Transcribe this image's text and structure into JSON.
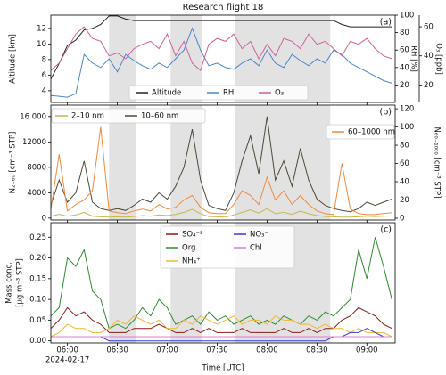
{
  "title": "Research flight 18",
  "chart_data": [
    {
      "type": "line",
      "panel_label": "(a)",
      "ylabel": "Altitude [km]",
      "y2label": "RH [%]",
      "y3label": "O₃ [ppb]",
      "x": [
        "05:50",
        "05:55",
        "06:00",
        "06:05",
        "06:10",
        "06:15",
        "06:20",
        "06:25",
        "06:30",
        "06:35",
        "06:40",
        "06:45",
        "06:50",
        "06:55",
        "07:00",
        "07:05",
        "07:10",
        "07:15",
        "07:20",
        "07:25",
        "07:30",
        "07:35",
        "07:40",
        "07:45",
        "07:50",
        "07:55",
        "08:00",
        "08:05",
        "08:10",
        "08:15",
        "08:20",
        "08:25",
        "08:30",
        "08:35",
        "08:40",
        "08:45",
        "08:50",
        "08:55",
        "09:00",
        "09:05",
        "09:10",
        "09:15"
      ],
      "xlim": [
        "05:50",
        "09:17"
      ],
      "shaded": [
        [
          "06:25",
          "06:41"
        ],
        [
          "07:02",
          "07:21"
        ],
        [
          "07:41",
          "08:38"
        ]
      ],
      "ylim": [
        2.5,
        13.7
      ],
      "yticks": [
        4,
        6,
        8,
        10,
        12
      ],
      "y2lim": [
        0,
        100
      ],
      "y2ticks": [
        20,
        40,
        60,
        80,
        100
      ],
      "y3lim": [
        8,
        68
      ],
      "y3ticks": [
        20,
        40,
        60
      ],
      "series": [
        {
          "name": "Altitude",
          "color": "#222222",
          "axis": "y",
          "values": [
            5.5,
            7.5,
            9.8,
            10.5,
            11.8,
            12.0,
            12.5,
            13.6,
            13.6,
            13.2,
            13.0,
            13.0,
            13.0,
            13.0,
            13.0,
            13.0,
            13.0,
            13.0,
            13.0,
            13.0,
            13.0,
            13.0,
            13.0,
            13.0,
            13.0,
            13.0,
            13.0,
            13.0,
            13.0,
            13.0,
            13.0,
            13.0,
            13.0,
            13.0,
            13.0,
            12.5,
            12.2,
            12.2,
            12.2,
            12.2,
            12.2,
            12.2
          ]
        },
        {
          "name": "RH",
          "color": "#4a86c8",
          "axis": "y2",
          "values": [
            8,
            7,
            6,
            10,
            55,
            45,
            40,
            50,
            35,
            55,
            48,
            42,
            38,
            45,
            40,
            50,
            60,
            85,
            60,
            42,
            45,
            40,
            38,
            45,
            50,
            42,
            60,
            45,
            40,
            55,
            48,
            42,
            50,
            45,
            60,
            55,
            45,
            40,
            35,
            30,
            25,
            22
          ]
        },
        {
          "name": "O₃",
          "color": "#d0609a",
          "axis": "y3",
          "values": [
            30,
            35,
            45,
            55,
            60,
            52,
            50,
            40,
            42,
            38,
            45,
            48,
            50,
            45,
            55,
            40,
            50,
            35,
            30,
            48,
            52,
            50,
            55,
            45,
            50,
            38,
            48,
            40,
            52,
            50,
            45,
            55,
            48,
            50,
            45,
            40,
            50,
            48,
            52,
            45,
            40,
            38
          ]
        }
      ]
    },
    {
      "type": "line",
      "panel_label": "(b)",
      "ylabel": "N₂₋₆₀ [cm⁻³ STP]",
      "y2label": "N₆₀₋₁₀₀₀ [cm⁻³ STP]",
      "x": [
        "05:50",
        "05:55",
        "06:00",
        "06:05",
        "06:10",
        "06:15",
        "06:20",
        "06:25",
        "06:30",
        "06:35",
        "06:40",
        "06:45",
        "06:50",
        "06:55",
        "07:00",
        "07:05",
        "07:10",
        "07:15",
        "07:20",
        "07:25",
        "07:30",
        "07:35",
        "07:40",
        "07:45",
        "07:50",
        "07:55",
        "08:00",
        "08:05",
        "08:10",
        "08:15",
        "08:20",
        "08:25",
        "08:30",
        "08:35",
        "08:40",
        "08:45",
        "08:50",
        "08:55",
        "09:00",
        "09:05",
        "09:10",
        "09:15"
      ],
      "xlim": [
        "05:50",
        "09:17"
      ],
      "shaded": [
        [
          "06:25",
          "06:41"
        ],
        [
          "07:02",
          "07:21"
        ],
        [
          "07:41",
          "08:38"
        ]
      ],
      "ylim": [
        -300,
        17800
      ],
      "yticks": [
        0,
        4000,
        8000,
        12000,
        {
          "value": 16000,
          "label": "16 000"
        }
      ],
      "y2lim": [
        -2,
        124
      ],
      "y2ticks": [
        0,
        20,
        40,
        60,
        80,
        100,
        120
      ],
      "series": [
        {
          "name": "2–10 nm",
          "color": "#c8b84a",
          "axis": "y",
          "values": [
            300,
            600,
            300,
            500,
            900,
            300,
            200,
            150,
            200,
            150,
            250,
            400,
            300,
            500,
            400,
            600,
            900,
            1400,
            700,
            250,
            200,
            150,
            500,
            900,
            1300,
            800,
            1500,
            700,
            900,
            600,
            1100,
            700,
            400,
            250,
            200,
            150,
            150,
            200,
            300,
            250,
            300,
            350
          ]
        },
        {
          "name": "10–60 nm",
          "color": "#4d4a36",
          "axis": "y",
          "values": [
            2000,
            6000,
            2500,
            4000,
            9000,
            2500,
            1500,
            1200,
            1500,
            1200,
            2000,
            3000,
            2500,
            4000,
            3000,
            5000,
            8000,
            14000,
            6000,
            2000,
            1500,
            1200,
            4000,
            9000,
            13000,
            7000,
            16000,
            6000,
            9000,
            5000,
            11000,
            6000,
            3000,
            2000,
            1500,
            1200,
            1000,
            1500,
            2500,
            2000,
            2500,
            3000
          ]
        },
        {
          "name": "60–1000 nm",
          "color": "#f08a3c",
          "axis": "y2",
          "values": [
            10,
            70,
            8,
            15,
            20,
            30,
            100,
            8,
            6,
            5,
            8,
            10,
            8,
            15,
            10,
            12,
            20,
            25,
            12,
            6,
            5,
            5,
            15,
            30,
            25,
            15,
            45,
            20,
            30,
            15,
            25,
            15,
            8,
            5,
            4,
            60,
            10,
            5,
            4,
            4,
            5,
            6
          ]
        }
      ]
    },
    {
      "type": "line",
      "panel_label": "(c)",
      "ylabel": [
        "Mass conc.",
        "[µg m⁻³ STP]"
      ],
      "xlabel": "Time [UTC]",
      "date": "2024-02-17",
      "x": [
        "05:50",
        "05:55",
        "06:00",
        "06:05",
        "06:10",
        "06:15",
        "06:20",
        "06:25",
        "06:30",
        "06:35",
        "06:40",
        "06:45",
        "06:50",
        "06:55",
        "07:00",
        "07:05",
        "07:10",
        "07:15",
        "07:20",
        "07:25",
        "07:30",
        "07:35",
        "07:40",
        "07:45",
        "07:50",
        "07:55",
        "08:00",
        "08:05",
        "08:10",
        "08:15",
        "08:20",
        "08:25",
        "08:30",
        "08:35",
        "08:40",
        "08:45",
        "08:50",
        "08:55",
        "09:00",
        "09:05",
        "09:10",
        "09:15"
      ],
      "xlim": [
        "05:50",
        "09:17"
      ],
      "xticks": [
        "06:00",
        "06:30",
        "07:00",
        "07:30",
        "08:00",
        "08:30",
        "09:00"
      ],
      "shaded": [
        [
          "06:25",
          "06:41"
        ],
        [
          "07:02",
          "07:21"
        ],
        [
          "07:41",
          "08:38"
        ]
      ],
      "ylim": [
        -0.005,
        0.285
      ],
      "yticks": [
        {
          "value": 0,
          "label": "0.00"
        },
        0.05,
        {
          "value": 0.1,
          "label": "0.10"
        },
        0.15,
        {
          "value": 0.2,
          "label": "0.20"
        },
        0.25
      ],
      "series": [
        {
          "name": "SO₄⁻²",
          "color": "#8b1a1a",
          "axis": "y",
          "values": [
            0.03,
            0.05,
            0.08,
            0.06,
            0.07,
            0.05,
            0.04,
            0.02,
            0.02,
            0.02,
            0.03,
            0.03,
            0.03,
            0.04,
            0.03,
            0.02,
            0.02,
            0.03,
            0.02,
            0.03,
            0.02,
            0.02,
            0.02,
            0.03,
            0.02,
            0.02,
            0.02,
            0.02,
            0.03,
            0.02,
            0.02,
            0.03,
            0.02,
            0.03,
            0.03,
            0.05,
            0.06,
            0.08,
            0.07,
            0.06,
            0.04,
            0.03
          ]
        },
        {
          "name": "Org",
          "color": "#2e8b2e",
          "axis": "y",
          "values": [
            0.06,
            0.08,
            0.2,
            0.18,
            0.22,
            0.12,
            0.1,
            0.03,
            0.04,
            0.03,
            0.05,
            0.08,
            0.06,
            0.1,
            0.08,
            0.04,
            0.05,
            0.06,
            0.04,
            0.07,
            0.05,
            0.06,
            0.04,
            0.05,
            0.06,
            0.04,
            0.05,
            0.04,
            0.06,
            0.05,
            0.04,
            0.06,
            0.05,
            0.07,
            0.06,
            0.08,
            0.1,
            0.22,
            0.15,
            0.25,
            0.18,
            0.1
          ]
        },
        {
          "name": "NH₄⁺",
          "color": "#f0b830",
          "axis": "y",
          "values": [
            0.01,
            0.02,
            0.04,
            0.03,
            0.03,
            0.02,
            0.02,
            0.03,
            0.05,
            0.04,
            0.06,
            0.05,
            0.04,
            0.05,
            0.03,
            0.03,
            0.05,
            0.04,
            0.06,
            0.05,
            0.04,
            0.05,
            0.06,
            0.04,
            0.05,
            0.05,
            0.04,
            0.06,
            0.05,
            0.05,
            0.04,
            0.04,
            0.03,
            0.04,
            0.03,
            0.03,
            0.02,
            0.03,
            0.02,
            0.02,
            0.02,
            0.01
          ]
        },
        {
          "name": "NO₃⁻",
          "color": "#3a3ad0",
          "axis": "y",
          "values": [
            0.01,
            0.01,
            0.01,
            0.01,
            0.01,
            0.01,
            0.01,
            0,
            0,
            0,
            0,
            0,
            0,
            0,
            0,
            0,
            0,
            0,
            0,
            0,
            0,
            0,
            0,
            0,
            0,
            0,
            0,
            0,
            0,
            0,
            0,
            0,
            0,
            0,
            0.01,
            0.01,
            0.02,
            0.02,
            0.03,
            0.02,
            0.01,
            0.01
          ]
        },
        {
          "name": "Chl",
          "color": "#e07fd0",
          "axis": "y",
          "values": [
            0.01,
            0.01,
            0.01,
            0.01,
            0.01,
            0.01,
            0.01,
            0.01,
            0.01,
            0.01,
            0.01,
            0.01,
            0.01,
            0.01,
            0.01,
            0.01,
            0.01,
            0.01,
            0.01,
            0.01,
            0.01,
            0.01,
            0.01,
            0.01,
            0.01,
            0.01,
            0.01,
            0.01,
            0.01,
            0.01,
            0.01,
            0.01,
            0.01,
            0.01,
            0.01,
            0.01,
            0.01,
            0.01,
            0.01,
            0.01,
            0.01,
            0.01
          ]
        }
      ]
    }
  ]
}
